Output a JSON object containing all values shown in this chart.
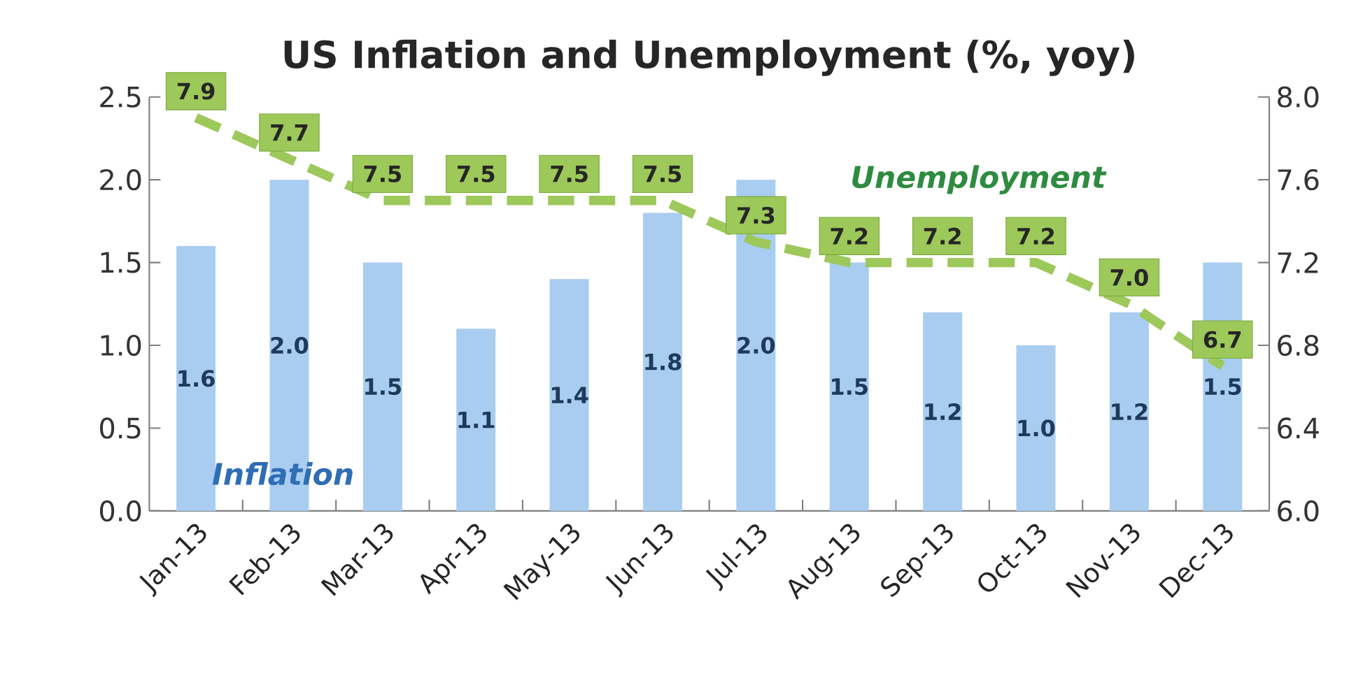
{
  "chart_data": {
    "type": "bar",
    "title": "US Inflation and Unemployment (%, yoy)",
    "categories": [
      "Jan-13",
      "Feb-13",
      "Mar-13",
      "Apr-13",
      "May-13",
      "Jun-13",
      "Jul-13",
      "Aug-13",
      "Sep-13",
      "Oct-13",
      "Nov-13",
      "Dec-13"
    ],
    "series": [
      {
        "name": "Inflation",
        "color": "#a9cdf0",
        "values": [
          1.6,
          2.0,
          1.5,
          1.1,
          1.4,
          1.8,
          2.0,
          1.5,
          1.2,
          1.0,
          1.2,
          1.5
        ],
        "value_labels": [
          "1.6",
          "2.0",
          "1.5",
          "1.1",
          "1.4",
          "1.8",
          "2.0",
          "1.5",
          "1.2",
          "1.0",
          "1.2",
          "1.5"
        ]
      },
      {
        "name": "Unemployment",
        "type": "line",
        "axis": "y2",
        "color": "#9dc85a",
        "line_style": "dashed",
        "values": [
          7.9,
          7.7,
          7.5,
          7.5,
          7.5,
          7.5,
          7.3,
          7.2,
          7.2,
          7.2,
          7.0,
          6.7
        ],
        "value_labels": [
          "7.9",
          "7.7",
          "7.5",
          "7.5",
          "7.5",
          "7.5",
          "7.3",
          "7.2",
          "7.2",
          "7.2",
          "7.0",
          "6.7"
        ]
      }
    ],
    "ylim": [
      0,
      2.5
    ],
    "yticks": [
      {
        "value": 0,
        "label": "0.0"
      },
      {
        "value": 0.5,
        "label": "0.5"
      },
      {
        "value": 1,
        "label": "1.0"
      },
      {
        "value": 1.5,
        "label": "1.5"
      },
      {
        "value": 2,
        "label": "2.0"
      },
      {
        "value": 2.5,
        "label": "2.5"
      }
    ],
    "y2lim": [
      6,
      8
    ],
    "y2ticks": [
      {
        "value": 6,
        "label": "6.0"
      },
      {
        "value": 6.4,
        "label": "6.4"
      },
      {
        "value": 6.8,
        "label": "6.8"
      },
      {
        "value": 7.2,
        "label": "7.2"
      },
      {
        "value": 7.6,
        "label": "7.6"
      },
      {
        "value": 8,
        "label": "8.0"
      }
    ],
    "grid": false,
    "legend": false
  }
}
